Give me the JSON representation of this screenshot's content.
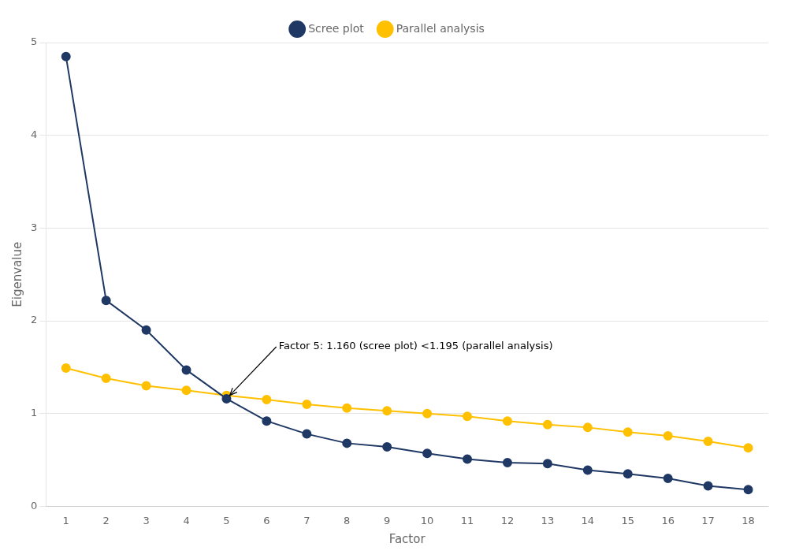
{
  "chart_data": {
    "type": "line",
    "x": [
      1,
      2,
      3,
      4,
      5,
      6,
      7,
      8,
      9,
      10,
      11,
      12,
      13,
      14,
      15,
      16,
      17,
      18
    ],
    "series": [
      {
        "name": "Scree plot",
        "color": "#1f3864",
        "marker": "circle",
        "line_style": "solid",
        "values": [
          4.85,
          2.22,
          1.9,
          1.47,
          1.16,
          0.92,
          0.78,
          0.68,
          0.64,
          0.57,
          0.51,
          0.47,
          0.46,
          0.39,
          0.35,
          0.3,
          0.22,
          0.18
        ]
      },
      {
        "name": "Parallel analysis",
        "color": "#ffc000",
        "marker": "circle",
        "line_style": "solid",
        "values": [
          1.49,
          1.38,
          1.3,
          1.25,
          1.195,
          1.15,
          1.1,
          1.06,
          1.03,
          1.0,
          0.97,
          0.92,
          0.88,
          0.85,
          0.8,
          0.76,
          0.7,
          0.63
        ]
      }
    ],
    "xlabel": "Factor",
    "ylabel": "Eigenvalue",
    "xlim": [
      0.5,
      18.5
    ],
    "xticks": [
      1,
      2,
      3,
      4,
      5,
      6,
      7,
      8,
      9,
      10,
      11,
      12,
      13,
      14,
      15,
      16,
      17,
      18
    ],
    "ylim": [
      0,
      5
    ],
    "yticks": [
      0,
      1,
      2,
      3,
      4,
      5
    ],
    "grid": "y",
    "legend": "top",
    "annotations": [
      {
        "text": "Factor 5: 1.160 (scree plot) <1.195 (parallel analysis)",
        "x": 5.0,
        "y": 1.16,
        "text_x": 6.3,
        "text_y": 1.72
      }
    ]
  }
}
